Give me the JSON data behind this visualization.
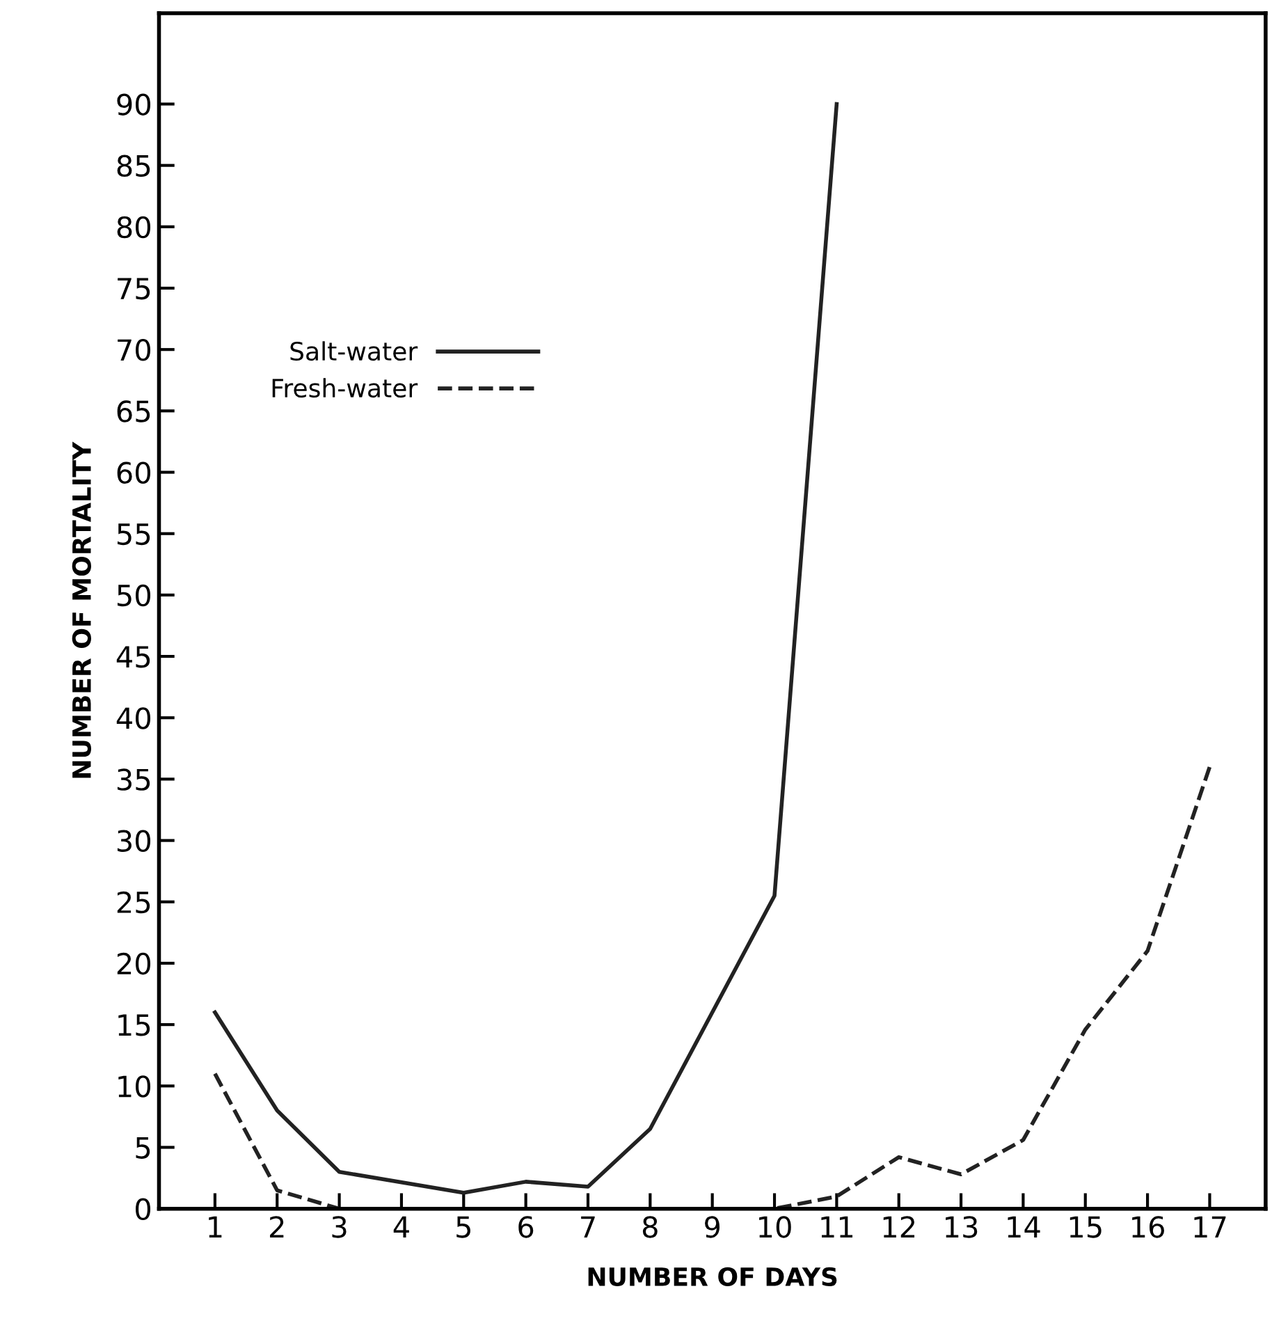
{
  "chart_data": {
    "type": "line",
    "xlabel": "NUMBER OF DAYS",
    "ylabel": "NUMBER OF MORTALITY",
    "series": [
      {
        "name": "Salt-water",
        "color": "#222222",
        "line_style": "solid",
        "x": [
          1,
          2,
          3,
          5,
          6,
          7,
          8,
          10,
          11
        ],
        "values": [
          16,
          8,
          3,
          1.3,
          2.2,
          1.8,
          6.5,
          25.5,
          90
        ]
      },
      {
        "name": "Fresh-water",
        "color": "#222222",
        "line_style": "dashed",
        "x": [
          1,
          2,
          3,
          10,
          11,
          12,
          13,
          14,
          15,
          16,
          17
        ],
        "values": [
          11,
          1.5,
          0,
          0,
          1,
          4.2,
          2.8,
          5.6,
          14.6,
          21,
          36
        ]
      }
    ],
    "xlim": [
      0.1,
      17.9
    ],
    "xticks": [
      1,
      2,
      3,
      4,
      5,
      6,
      7,
      8,
      9,
      10,
      11,
      12,
      13,
      14,
      15,
      16,
      17
    ],
    "ylim": [
      0,
      97.4
    ],
    "yticks": [
      0,
      5,
      10,
      15,
      20,
      25,
      30,
      35,
      40,
      45,
      50,
      55,
      60,
      65,
      70,
      75,
      80,
      85,
      90
    ],
    "grid": false,
    "legend": "left",
    "marker": "none"
  }
}
